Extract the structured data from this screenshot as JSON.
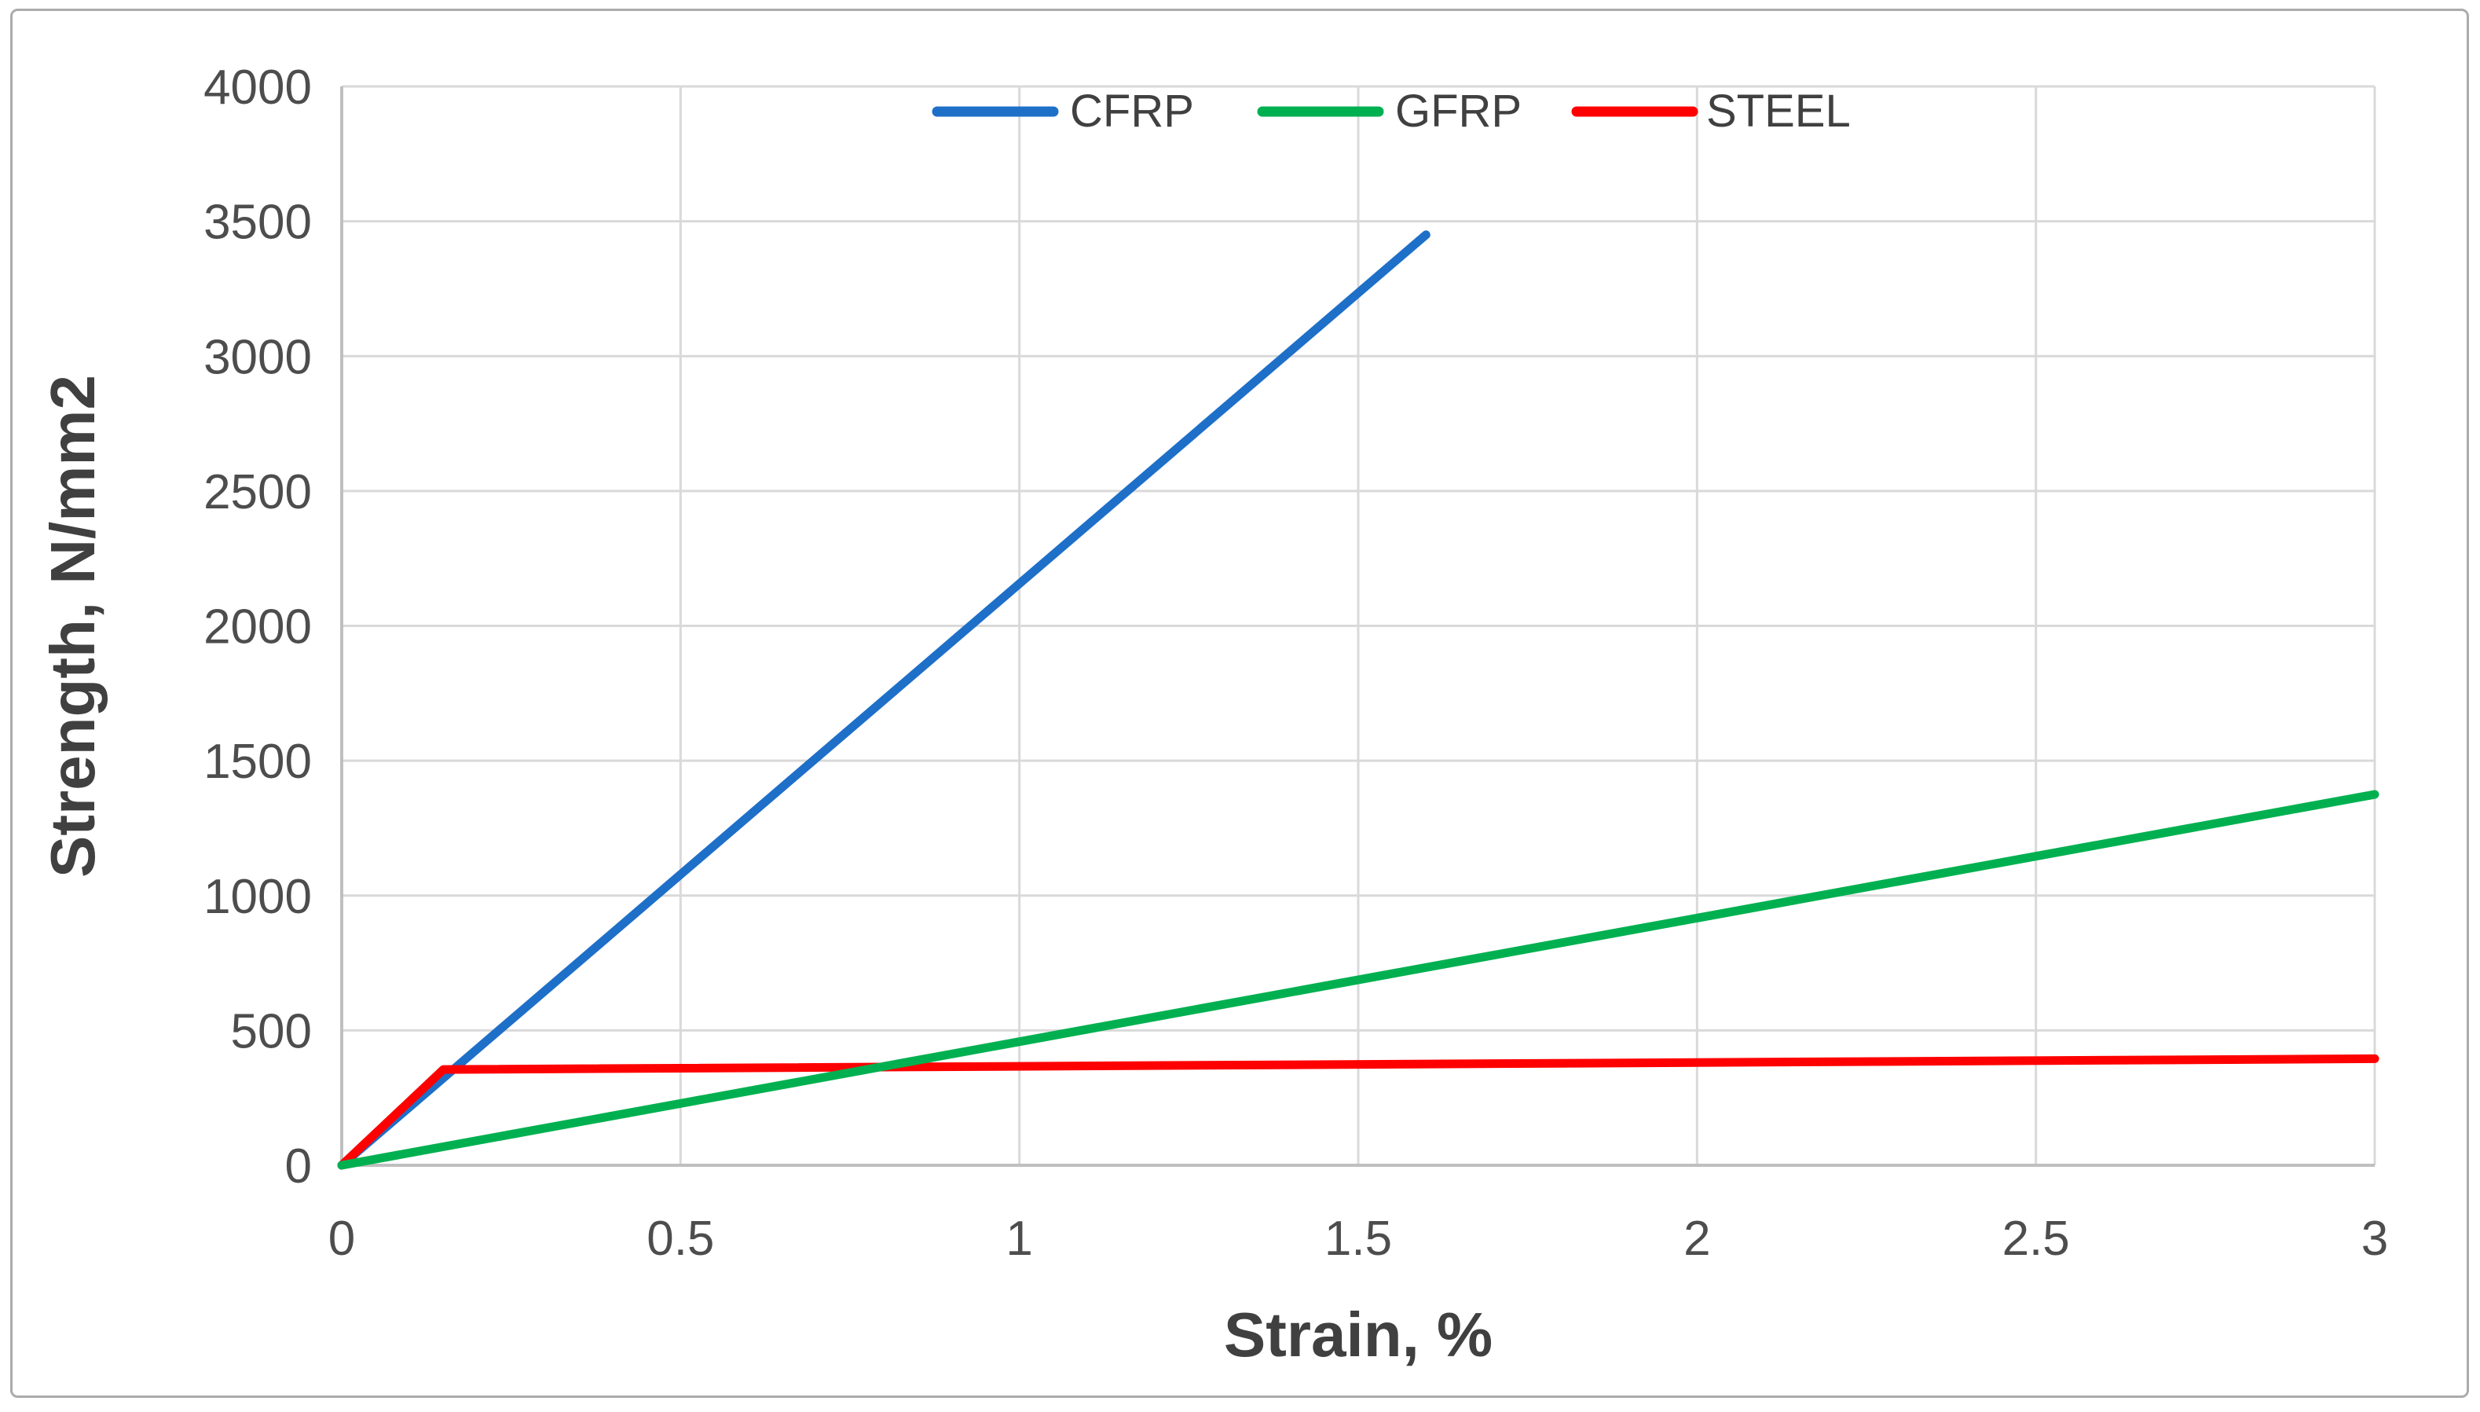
{
  "chart_data": {
    "type": "line",
    "title": "",
    "xlabel": "Strain, %",
    "ylabel": "Strength, N/mm2",
    "xlim": [
      0,
      3
    ],
    "ylim": [
      0,
      4000
    ],
    "xtick_values": [
      0,
      0.5,
      1,
      1.5,
      2,
      2.5,
      3
    ],
    "xtick_labels": [
      "0",
      "0.5",
      "1",
      "1.5",
      "2",
      "2.5",
      "3"
    ],
    "ytick_values": [
      0,
      500,
      1000,
      1500,
      2000,
      2500,
      3000,
      3500,
      4000
    ],
    "ytick_labels": [
      "0",
      "500",
      "1000",
      "1500",
      "2000",
      "2500",
      "3000",
      "3500",
      "4000"
    ],
    "grid": true,
    "legend_position": "top-center-inside",
    "series": [
      {
        "name": "CFRP",
        "color": "#1E6FC8",
        "points": [
          [
            0,
            0
          ],
          [
            1.6,
            3450
          ]
        ]
      },
      {
        "name": "GFRP",
        "color": "#00B050",
        "points": [
          [
            0,
            0
          ],
          [
            3,
            1375
          ]
        ]
      },
      {
        "name": "STEEL",
        "color": "#FF0000",
        "points": [
          [
            0,
            0
          ],
          [
            0.15,
            355
          ],
          [
            3,
            395
          ]
        ]
      }
    ],
    "draw_order": [
      "CFRP",
      "STEEL",
      "GFRP"
    ]
  },
  "colors": {
    "background": "#FFFFFF",
    "gridline": "#D9D9D9",
    "axis_line": "#BFBFBF",
    "tick_text": "#4D4D4D",
    "title_text": "#404040",
    "frame_border": "#ABABAB"
  }
}
